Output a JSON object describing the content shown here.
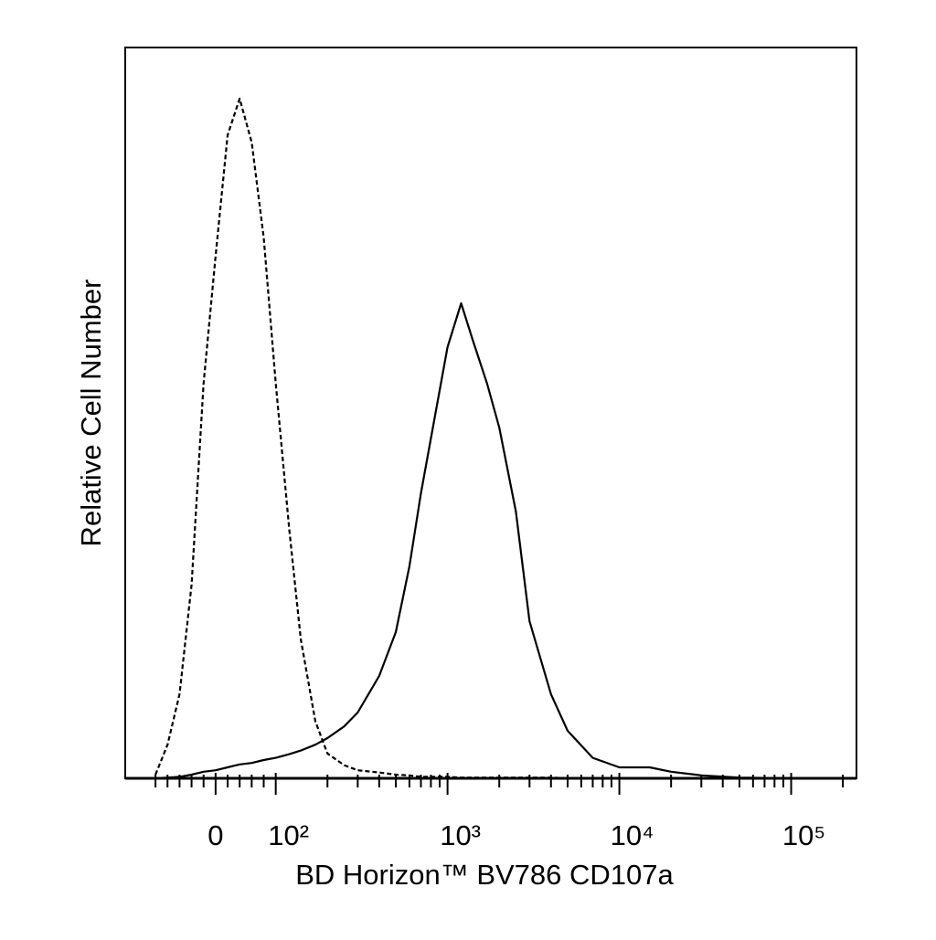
{
  "chart_data": {
    "type": "line",
    "xlabel": "BD Horizon™ BV786 CD107a",
    "ylabel": "Relative Cell Number",
    "xscale": "symlog",
    "linthresh": 100,
    "xlim": [
      -150,
      240000
    ],
    "ylim": [
      0,
      100
    ],
    "xticks": [
      0,
      {
        "value": 100,
        "label": "10²"
      },
      {
        "value": 1000,
        "label": "10³"
      },
      {
        "value": 10000,
        "label": "10⁴"
      },
      {
        "value": 100000,
        "label": "10⁵"
      }
    ],
    "minor_xticks": [
      -100,
      -80,
      -60,
      -40,
      -20,
      20,
      40,
      60,
      80,
      200,
      300,
      400,
      500,
      600,
      700,
      800,
      900,
      2000,
      3000,
      4000,
      5000,
      6000,
      7000,
      8000,
      9000,
      20000,
      30000,
      40000,
      50000,
      60000,
      70000,
      80000,
      90000,
      200000
    ],
    "x": [
      -100,
      -80,
      -60,
      -40,
      -20,
      0,
      20,
      40,
      60,
      80,
      100,
      120,
      140,
      170,
      200,
      250,
      300,
      400,
      500,
      600,
      700,
      800,
      1000,
      1200,
      1400,
      1700,
      2000,
      2500,
      3000,
      4000,
      5000,
      7000,
      10000,
      15000,
      20000,
      30000,
      50000,
      100000,
      200000
    ],
    "series": [
      {
        "color": "#000000",
        "dashed": true,
        "values": [
          0.5,
          4.6,
          11.5,
          26.5,
          54,
          71.5,
          88,
          93,
          87,
          74,
          54,
          34,
          19,
          7.8,
          3.4,
          1.8,
          1.1,
          0.8,
          0.5,
          0.4,
          0.2,
          0.2,
          0.2,
          0.1,
          0.1,
          0.1,
          0.1,
          0.1,
          0.1,
          0.1,
          0,
          0,
          0,
          0,
          0,
          0,
          0,
          0,
          0
        ]
      },
      {
        "color": "#000000",
        "dashed": false,
        "values": [
          0,
          0.1,
          0.2,
          0.5,
          0.9,
          1.1,
          1.5,
          1.9,
          2.1,
          2.5,
          2.8,
          3.3,
          3.8,
          4.6,
          5.5,
          7.1,
          9,
          14,
          20,
          29,
          39,
          46.5,
          59,
          65,
          60,
          54,
          48,
          36.5,
          21.5,
          11.5,
          6.5,
          2.8,
          1.5,
          1.5,
          0.9,
          0.4,
          0.1,
          0,
          0
        ]
      }
    ]
  }
}
